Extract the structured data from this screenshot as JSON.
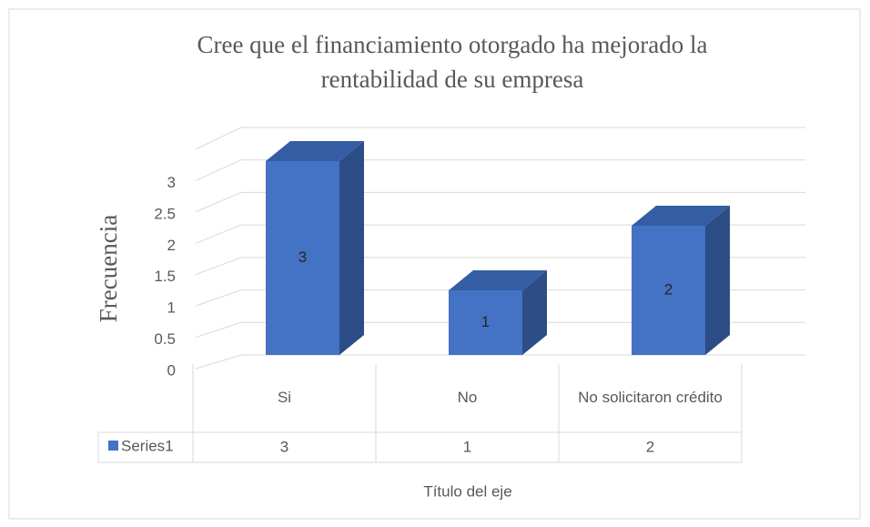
{
  "chart_data": {
    "type": "bar3d",
    "title": "Cree que el financiamiento otorgado ha mejorado la rentabilidad de su empresa",
    "y_axis_title": "Frecuencia",
    "x_axis_title": "Título del eje",
    "categories": [
      "Si",
      "No",
      "No solicitaron crédito"
    ],
    "series": [
      {
        "name": "Series1",
        "color": "#4472c4",
        "values": [
          3,
          1,
          2
        ]
      }
    ],
    "ylim": [
      0,
      3.5
    ],
    "yticks": [
      0,
      0.5,
      1,
      1.5,
      2,
      2.5,
      3
    ],
    "grid": true,
    "data_table": true
  }
}
